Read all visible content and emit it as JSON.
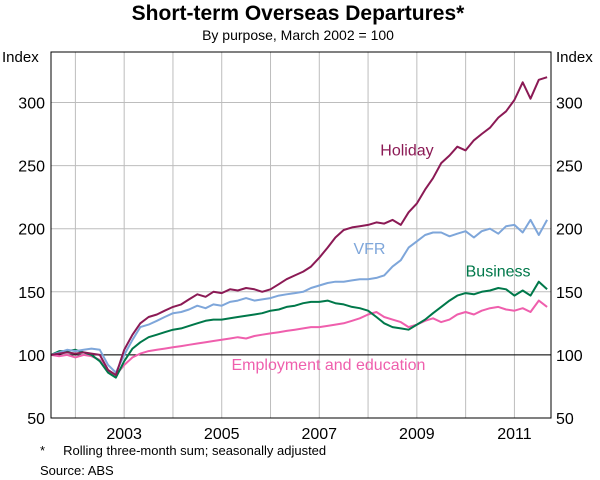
{
  "chart_data": {
    "type": "line",
    "title": "Short-term Overseas Departures*",
    "subtitle": "By purpose, March 2002 = 100",
    "y_unit_left": "Index",
    "y_unit_right": "Index",
    "ylim": [
      50,
      340
    ],
    "y_ticks": [
      50,
      100,
      150,
      200,
      250,
      300
    ],
    "y_tick_labels": [
      "50",
      "100",
      "150",
      "200",
      "250",
      "300"
    ],
    "x_tick_labels": [
      "2003",
      "2005",
      "2007",
      "2009",
      "2011"
    ],
    "x_tick_values": [
      2003.0,
      2005.0,
      2007.0,
      2009.0,
      2011.0
    ],
    "x_range": [
      2001.5,
      2011.75
    ],
    "baseline": 100,
    "grid": true,
    "footnote": "*     Rolling three-month sum; seasonally adjusted",
    "source": "Source: ABS",
    "series": [
      {
        "name": "Holiday",
        "color": "#8b1a55",
        "x": [
          2001.5,
          2001.67,
          2001.83,
          2002.0,
          2002.17,
          2002.33,
          2002.5,
          2002.67,
          2002.83,
          2003.0,
          2003.17,
          2003.33,
          2003.5,
          2003.67,
          2003.83,
          2004.0,
          2004.17,
          2004.33,
          2004.5,
          2004.67,
          2004.83,
          2005.0,
          2005.17,
          2005.33,
          2005.5,
          2005.67,
          2005.83,
          2006.0,
          2006.17,
          2006.33,
          2006.5,
          2006.67,
          2006.83,
          2007.0,
          2007.17,
          2007.33,
          2007.5,
          2007.67,
          2007.83,
          2008.0,
          2008.17,
          2008.33,
          2008.5,
          2008.67,
          2008.83,
          2009.0,
          2009.17,
          2009.33,
          2009.5,
          2009.67,
          2009.83,
          2010.0,
          2010.17,
          2010.33,
          2010.5,
          2010.67,
          2010.83,
          2011.0,
          2011.17,
          2011.33,
          2011.5,
          2011.67
        ],
        "values": [
          100,
          101,
          102,
          101,
          102,
          101,
          100,
          88,
          84,
          104,
          116,
          125,
          130,
          132,
          135,
          138,
          140,
          144,
          148,
          146,
          150,
          149,
          152,
          151,
          153,
          152,
          150,
          152,
          156,
          160,
          163,
          166,
          170,
          177,
          185,
          193,
          199,
          201,
          202,
          203,
          205,
          204,
          207,
          203,
          213,
          220,
          231,
          240,
          252,
          258,
          265,
          262,
          270,
          275,
          280,
          288,
          293,
          302,
          316,
          303,
          318,
          320
        ]
      },
      {
        "name": "VFR",
        "color": "#7ea6da",
        "x": [
          2001.5,
          2001.67,
          2001.83,
          2002.0,
          2002.17,
          2002.33,
          2002.5,
          2002.67,
          2002.83,
          2003.0,
          2003.17,
          2003.33,
          2003.5,
          2003.67,
          2003.83,
          2004.0,
          2004.17,
          2004.33,
          2004.5,
          2004.67,
          2004.83,
          2005.0,
          2005.17,
          2005.33,
          2005.5,
          2005.67,
          2005.83,
          2006.0,
          2006.17,
          2006.33,
          2006.5,
          2006.67,
          2006.83,
          2007.0,
          2007.17,
          2007.33,
          2007.5,
          2007.67,
          2007.83,
          2008.0,
          2008.17,
          2008.33,
          2008.5,
          2008.67,
          2008.83,
          2009.0,
          2009.17,
          2009.33,
          2009.5,
          2009.67,
          2009.83,
          2010.0,
          2010.17,
          2010.33,
          2010.5,
          2010.67,
          2010.83,
          2011.0,
          2011.17,
          2011.33,
          2011.5,
          2011.67
        ],
        "values": [
          100,
          102,
          104,
          103,
          104,
          105,
          104,
          92,
          86,
          100,
          112,
          122,
          124,
          127,
          130,
          133,
          134,
          136,
          139,
          137,
          140,
          139,
          142,
          143,
          145,
          143,
          144,
          145,
          147,
          148,
          149,
          150,
          153,
          155,
          157,
          158,
          158,
          159,
          160,
          160,
          161,
          163,
          170,
          175,
          185,
          190,
          195,
          197,
          197,
          194,
          196,
          198,
          193,
          198,
          200,
          196,
          202,
          203,
          197,
          207,
          195,
          207
        ]
      },
      {
        "name": "Business",
        "color": "#00784a",
        "x": [
          2001.5,
          2001.67,
          2001.83,
          2002.0,
          2002.17,
          2002.33,
          2002.5,
          2002.67,
          2002.83,
          2003.0,
          2003.17,
          2003.33,
          2003.5,
          2003.67,
          2003.83,
          2004.0,
          2004.17,
          2004.33,
          2004.5,
          2004.67,
          2004.83,
          2005.0,
          2005.17,
          2005.33,
          2005.5,
          2005.67,
          2005.83,
          2006.0,
          2006.17,
          2006.33,
          2006.5,
          2006.67,
          2006.83,
          2007.0,
          2007.17,
          2007.33,
          2007.5,
          2007.67,
          2007.83,
          2008.0,
          2008.17,
          2008.33,
          2008.5,
          2008.67,
          2008.83,
          2009.0,
          2009.17,
          2009.33,
          2009.5,
          2009.67,
          2009.83,
          2010.0,
          2010.17,
          2010.33,
          2010.5,
          2010.67,
          2010.83,
          2011.0,
          2011.17,
          2011.33,
          2011.5,
          2011.67
        ],
        "values": [
          100,
          103,
          103,
          104,
          102,
          100,
          95,
          86,
          82,
          95,
          105,
          110,
          114,
          116,
          118,
          120,
          121,
          123,
          125,
          127,
          128,
          128,
          129,
          130,
          131,
          132,
          133,
          135,
          136,
          138,
          139,
          141,
          142,
          142,
          143,
          141,
          140,
          138,
          137,
          135,
          130,
          125,
          122,
          121,
          120,
          124,
          128,
          133,
          138,
          143,
          147,
          149,
          148,
          150,
          151,
          153,
          152,
          147,
          151,
          147,
          158,
          152
        ]
      },
      {
        "name": "Employment and education",
        "color": "#ef5fad",
        "x": [
          2001.5,
          2001.67,
          2001.83,
          2002.0,
          2002.17,
          2002.33,
          2002.5,
          2002.67,
          2002.83,
          2003.0,
          2003.17,
          2003.33,
          2003.5,
          2003.67,
          2003.83,
          2004.0,
          2004.17,
          2004.33,
          2004.5,
          2004.67,
          2004.83,
          2005.0,
          2005.17,
          2005.33,
          2005.5,
          2005.67,
          2005.83,
          2006.0,
          2006.17,
          2006.33,
          2006.5,
          2006.67,
          2006.83,
          2007.0,
          2007.17,
          2007.33,
          2007.5,
          2007.67,
          2007.83,
          2008.0,
          2008.17,
          2008.33,
          2008.5,
          2008.67,
          2008.83,
          2009.0,
          2009.17,
          2009.33,
          2009.5,
          2009.67,
          2009.83,
          2010.0,
          2010.17,
          2010.33,
          2010.5,
          2010.67,
          2010.83,
          2011.0,
          2011.17,
          2011.33,
          2011.5,
          2011.67
        ],
        "values": [
          100,
          99,
          100,
          98,
          100,
          99,
          96,
          87,
          84,
          92,
          98,
          101,
          103,
          104,
          105,
          106,
          107,
          108,
          109,
          110,
          111,
          112,
          113,
          114,
          113,
          115,
          116,
          117,
          118,
          119,
          120,
          121,
          122,
          122,
          123,
          124,
          125,
          127,
          129,
          132,
          134,
          130,
          128,
          126,
          122,
          124,
          127,
          129,
          126,
          128,
          132,
          134,
          132,
          135,
          137,
          138,
          136,
          135,
          137,
          134,
          143,
          138
        ]
      }
    ],
    "series_labels": [
      {
        "text": "Holiday",
        "color": "#8b1a55",
        "x": 2008.25,
        "y": 258
      },
      {
        "text": "VFR",
        "color": "#7ea6da",
        "x": 2007.7,
        "y": 180
      },
      {
        "text": "Business",
        "color": "#00784a",
        "x": 2010.0,
        "y": 162
      },
      {
        "text": "Employment and education",
        "color": "#ef5fad",
        "x": 2005.2,
        "y": 88
      }
    ]
  }
}
